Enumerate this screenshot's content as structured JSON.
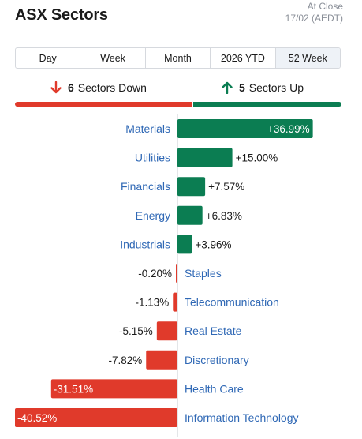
{
  "header": {
    "title": "ASX Sectors",
    "status_line1": "At Close",
    "status_line2": "17/02 (AEDT)"
  },
  "tabs": [
    {
      "label": "Day",
      "active": false
    },
    {
      "label": "Week",
      "active": false
    },
    {
      "label": "Month",
      "active": false
    },
    {
      "label": "2026 YTD",
      "active": false
    },
    {
      "label": "52 Week",
      "active": true
    }
  ],
  "summary": {
    "down_count": "6",
    "down_label": "Sectors Down",
    "up_count": "5",
    "up_label": "Sectors Up"
  },
  "colors": {
    "up": "#0b7d52",
    "down": "#e03a2b",
    "label": "#2f68b5"
  },
  "chart_data": {
    "type": "bar",
    "orientation": "horizontal-diverging",
    "categories": [
      "Materials",
      "Utilities",
      "Financials",
      "Energy",
      "Industrials",
      "Staples",
      "Telecommunication",
      "Real Estate",
      "Discretionary",
      "Health Care",
      "Information Technology"
    ],
    "values": [
      36.99,
      15.0,
      7.57,
      6.83,
      3.96,
      -0.2,
      -1.13,
      -5.15,
      -7.82,
      -31.51,
      -40.52
    ],
    "value_labels": [
      "+36.99%",
      "+15.00%",
      "+7.57%",
      "+6.83%",
      "+3.96%",
      "-0.20%",
      "-1.13%",
      "-5.15%",
      "-7.82%",
      "-31.51%",
      "-40.52%"
    ],
    "unit": "%"
  }
}
